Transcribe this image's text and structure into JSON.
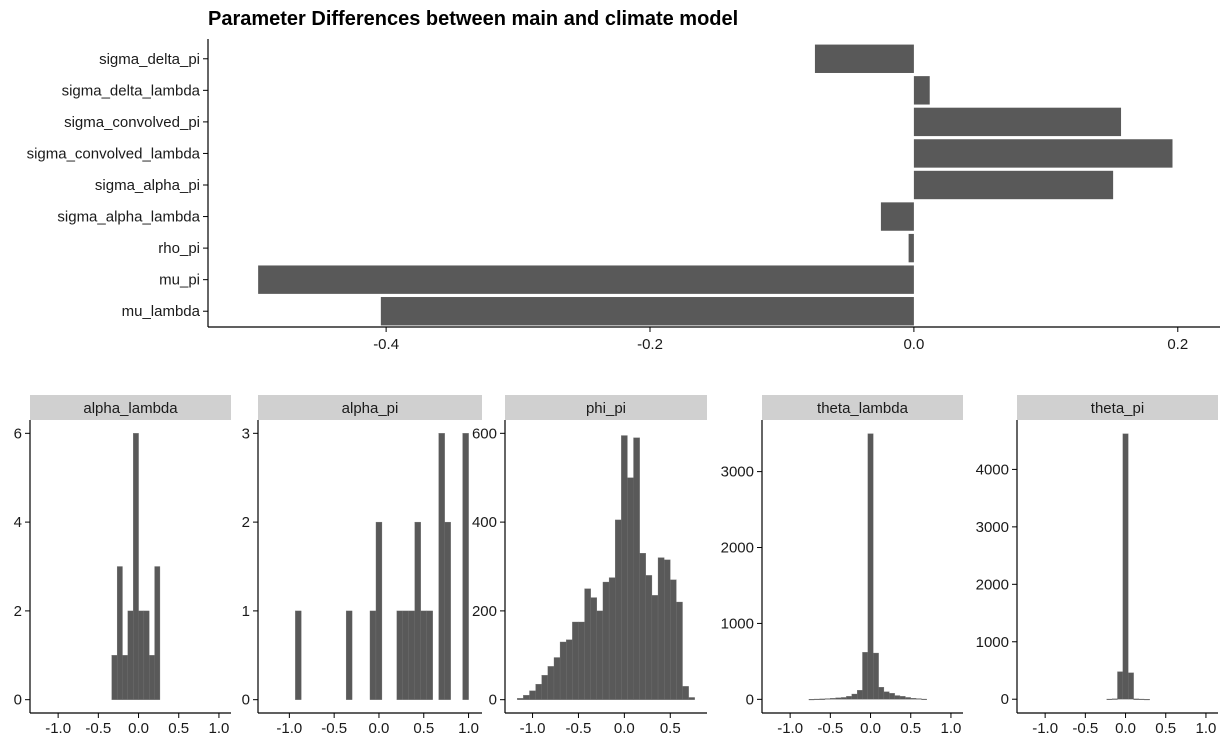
{
  "chart_data": [
    {
      "type": "bar",
      "orientation": "horizontal",
      "title": "Parameter Differences between main and climate model",
      "xlabel": "",
      "ylabel": "",
      "categories": [
        "sigma_delta_pi",
        "sigma_delta_lambda",
        "sigma_convolved_pi",
        "sigma_convolved_lambda",
        "sigma_alpha_pi",
        "sigma_alpha_lambda",
        "rho_pi",
        "mu_pi",
        "mu_lambda"
      ],
      "values": [
        -0.075,
        0.012,
        0.157,
        0.196,
        0.151,
        -0.025,
        -0.004,
        -0.497,
        -0.404
      ],
      "xlim": [
        -0.535,
        0.232
      ],
      "x_ticks": [
        -0.4,
        -0.2,
        0.0,
        0.2
      ],
      "x_tick_labels": [
        "-0.4",
        "-0.2",
        "0.0",
        "0.2"
      ],
      "bar_color": "#595959",
      "grid": false
    },
    {
      "type": "histogram",
      "facet": "alpha_lambda",
      "bin_width": 0.0667,
      "bin_centers": [
        -0.3,
        -0.233,
        -0.167,
        -0.1,
        -0.033,
        0.033,
        0.1,
        0.167,
        0.233
      ],
      "counts": [
        1,
        3,
        1,
        2,
        6,
        2,
        2,
        1,
        3
      ],
      "xlim": [
        -1.35,
        1.15
      ],
      "ylim": [
        -0.3,
        6.3
      ],
      "x_ticks": [
        -1.0,
        -0.5,
        0.0,
        0.5,
        1.0
      ],
      "x_tick_labels": [
        "-1.0",
        "-0.5",
        "0.0",
        "0.5",
        "1.0"
      ],
      "y_ticks": [
        0,
        2,
        4,
        6
      ],
      "y_tick_labels": [
        "0",
        "2",
        "4",
        "6"
      ]
    },
    {
      "type": "histogram",
      "facet": "alpha_pi",
      "bin_width": 0.0667,
      "bin_centers": [
        -0.9,
        -0.333,
        -0.067,
        0.0,
        0.233,
        0.3,
        0.367,
        0.433,
        0.5,
        0.567,
        0.7,
        0.767,
        0.967
      ],
      "counts": [
        1,
        1,
        1,
        2,
        1,
        1,
        1,
        2,
        1,
        1,
        3,
        2,
        3
      ],
      "xlim": [
        -1.35,
        1.15
      ],
      "ylim": [
        -0.15,
        3.15
      ],
      "x_ticks": [
        -1.0,
        -0.5,
        0.0,
        0.5,
        1.0
      ],
      "x_tick_labels": [
        "-1.0",
        "-0.5",
        "0.0",
        "0.5",
        "1.0"
      ],
      "y_ticks": [
        0,
        1,
        2,
        3
      ],
      "y_tick_labels": [
        "0",
        "1",
        "2",
        "3"
      ]
    },
    {
      "type": "histogram",
      "facet": "phi_pi",
      "bin_width": 0.0667,
      "bin_centers": [
        -1.133,
        -1.067,
        -1.0,
        -0.933,
        -0.867,
        -0.8,
        -0.733,
        -0.667,
        -0.6,
        -0.533,
        -0.467,
        -0.4,
        -0.333,
        -0.267,
        -0.2,
        -0.133,
        -0.067,
        0.0,
        0.067,
        0.133,
        0.2,
        0.267,
        0.333,
        0.4,
        0.467,
        0.533,
        0.6,
        0.667,
        0.733
      ],
      "counts": [
        3,
        10,
        20,
        35,
        55,
        75,
        95,
        130,
        135,
        175,
        175,
        250,
        230,
        200,
        265,
        275,
        405,
        595,
        500,
        590,
        330,
        280,
        235,
        320,
        315,
        270,
        220,
        30,
        5
      ],
      "xlim": [
        -1.3,
        0.9
      ],
      "ylim": [
        -30,
        630
      ],
      "x_ticks": [
        -1.0,
        -0.5,
        0.0,
        0.5
      ],
      "x_tick_labels": [
        "-1.0",
        "-0.5",
        "0.0",
        "0.5"
      ],
      "y_ticks": [
        0,
        200,
        400,
        600
      ],
      "y_tick_labels": [
        "0",
        "200",
        "400",
        "600"
      ]
    },
    {
      "type": "histogram",
      "facet": "theta_lambda",
      "bin_width": 0.0667,
      "bin_centers": [
        -0.733,
        -0.667,
        -0.6,
        -0.533,
        -0.467,
        -0.4,
        -0.333,
        -0.267,
        -0.2,
        -0.133,
        -0.067,
        0.0,
        0.067,
        0.133,
        0.2,
        0.267,
        0.333,
        0.4,
        0.467,
        0.533,
        0.6,
        0.667
      ],
      "counts": [
        2,
        4,
        6,
        10,
        14,
        20,
        25,
        40,
        70,
        120,
        620,
        3500,
        610,
        160,
        100,
        80,
        50,
        40,
        25,
        15,
        10,
        4
      ],
      "xlim": [
        -1.35,
        1.15
      ],
      "ylim": [
        -180,
        3680
      ],
      "x_ticks": [
        -1.0,
        -0.5,
        0.0,
        0.5,
        1.0
      ],
      "x_tick_labels": [
        "-1.0",
        "-0.5",
        "0.0",
        "0.5",
        "1.0"
      ],
      "y_ticks": [
        0,
        1000,
        2000,
        3000
      ],
      "y_tick_labels": [
        "0",
        "1000",
        "2000",
        "3000"
      ]
    },
    {
      "type": "histogram",
      "facet": "theta_pi",
      "bin_width": 0.0667,
      "bin_centers": [
        -0.2,
        -0.133,
        -0.067,
        0.0,
        0.067,
        0.133,
        0.2,
        0.267
      ],
      "counts": [
        3,
        8,
        480,
        4620,
        460,
        6,
        3,
        1
      ],
      "xlim": [
        -1.35,
        1.15
      ],
      "ylim": [
        -240,
        4860
      ],
      "x_ticks": [
        -1.0,
        -0.5,
        0.0,
        0.5,
        1.0
      ],
      "x_tick_labels": [
        "-1.0",
        "-0.5",
        "0.0",
        "0.5",
        "1.0"
      ],
      "y_ticks": [
        0,
        1000,
        2000,
        3000,
        4000
      ],
      "y_tick_labels": [
        "0",
        "1000",
        "2000",
        "3000",
        "4000"
      ]
    }
  ],
  "style": {
    "bar_color": "#595959",
    "strip_fill": "#d0d0d0",
    "axis_color": "#000000"
  }
}
